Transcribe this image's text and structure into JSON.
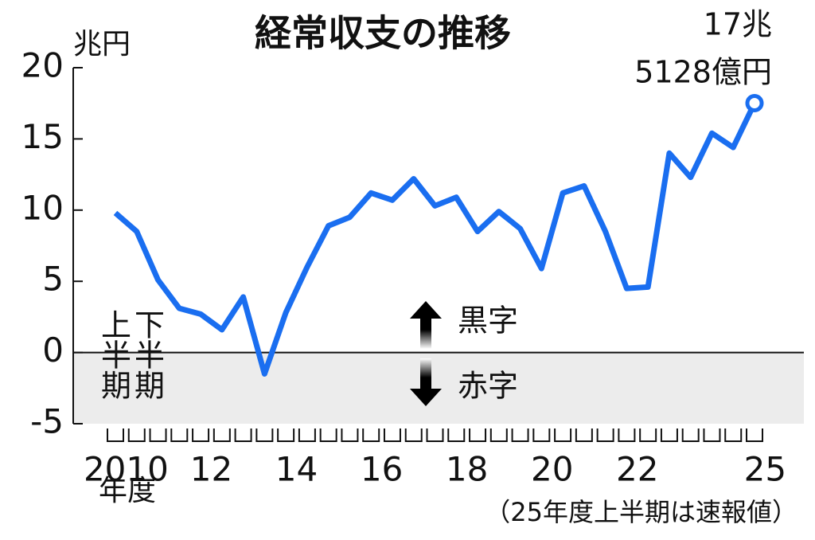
{
  "chart_data": {
    "type": "line",
    "title": "経常収支の推移",
    "y_unit": "兆円",
    "x_unit": "年度",
    "note": "（25年度上半期は速報値）",
    "annotation": [
      "17兆",
      "5128億円"
    ],
    "half_labels": [
      "上半期",
      "下半期"
    ],
    "surplus_label": "黒字",
    "deficit_label": "赤字",
    "categories": [
      "2010",
      null,
      null,
      null,
      "12",
      null,
      null,
      null,
      "14",
      null,
      null,
      null,
      "16",
      null,
      null,
      null,
      "18",
      null,
      null,
      null,
      "20",
      null,
      null,
      null,
      "22",
      null,
      null,
      null,
      null,
      null,
      "25"
    ],
    "series": [
      {
        "name": "経常収支",
        "color": "#1a6ef0",
        "values": [
          9.8,
          8.5,
          5.1,
          3.1,
          2.7,
          1.6,
          3.9,
          -1.5,
          2.8,
          6.0,
          8.9,
          9.5,
          11.2,
          10.7,
          12.2,
          10.3,
          10.9,
          8.5,
          9.9,
          8.7,
          5.9,
          11.2,
          11.7,
          8.5,
          4.5,
          4.6,
          14.0,
          12.3,
          15.4,
          14.4,
          17.5128
        ]
      }
    ],
    "ylim": [
      -5,
      20
    ],
    "yticks": [
      20,
      15,
      10,
      5,
      0,
      -5
    ],
    "grid": false
  }
}
